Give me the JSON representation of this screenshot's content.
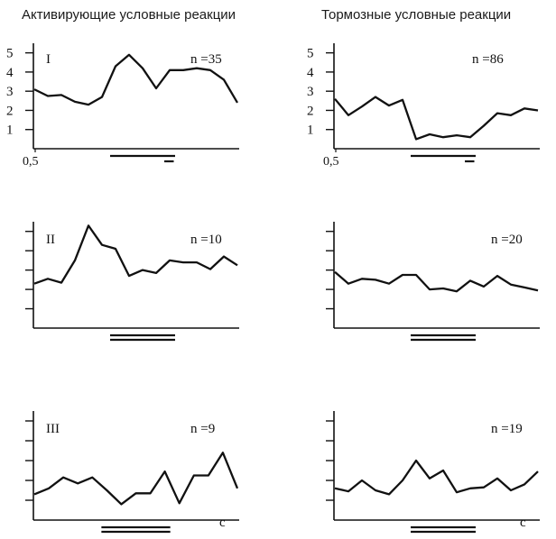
{
  "columns": {
    "left": "Активирующие условные реакции",
    "right": "Тормозные условные реакции"
  },
  "x_unit": "с",
  "chart_data": [
    {
      "type": "line",
      "column": "left",
      "row": 1,
      "label": "I",
      "n": "n =35",
      "ylim": [
        0,
        5.5
      ],
      "yticks": [
        "1",
        "2",
        "3",
        "4",
        "5"
      ],
      "xtick": "0,5",
      "values": [
        3.1,
        2.75,
        2.8,
        2.45,
        2.3,
        2.7,
        4.3,
        4.9,
        4.2,
        3.15,
        4.1,
        4.1,
        4.2,
        4.1,
        3.6,
        2.4
      ],
      "stimulus_long": [
        6,
        10
      ],
      "stimulus_short": [
        9.6,
        10.3
      ]
    },
    {
      "type": "line",
      "column": "right",
      "row": 1,
      "label": "",
      "n": "n =86",
      "ylim": [
        0,
        5.5
      ],
      "yticks": [
        "1",
        "2",
        "3",
        "4",
        "5"
      ],
      "xtick": "0,5",
      "values": [
        2.6,
        1.75,
        2.2,
        2.7,
        2.25,
        2.55,
        0.5,
        0.75,
        0.6,
        0.7,
        0.6,
        1.2,
        1.85,
        1.75,
        2.1,
        2.0
      ],
      "stimulus_long": [
        6,
        10
      ],
      "stimulus_short": [
        9.6,
        10.3
      ]
    },
    {
      "type": "line",
      "column": "left",
      "row": 2,
      "label": "II",
      "n": "n =10",
      "ylim": [
        0,
        5.5
      ],
      "yticks": [],
      "values": [
        2.3,
        2.55,
        2.35,
        3.5,
        5.3,
        4.3,
        4.1,
        2.7,
        3.0,
        2.85,
        3.5,
        3.4,
        3.4,
        3.05,
        3.7,
        3.25
      ],
      "stimulus_long": [
        6,
        10
      ],
      "stimulus_double": true
    },
    {
      "type": "line",
      "column": "right",
      "row": 2,
      "label": "",
      "n": "n =20",
      "ylim": [
        0,
        5.5
      ],
      "yticks": [],
      "values": [
        2.9,
        2.3,
        2.55,
        2.5,
        2.3,
        2.75,
        2.75,
        2.0,
        2.05,
        1.9,
        2.45,
        2.15,
        2.7,
        2.25,
        2.1,
        1.95
      ],
      "stimulus_long": [
        6,
        10
      ],
      "stimulus_double": true
    },
    {
      "type": "line",
      "column": "left",
      "row": 3,
      "label": "III",
      "n": "n =9",
      "ylim": [
        0,
        5.5
      ],
      "yticks": [],
      "values": [
        1.3,
        1.6,
        2.15,
        1.85,
        2.15,
        1.5,
        0.8,
        1.35,
        1.35,
        2.45,
        0.85,
        2.25,
        2.25,
        3.4,
        1.6
      ],
      "stimulus_long": [
        5,
        9
      ],
      "stimulus_double": true,
      "xunit": true
    },
    {
      "type": "line",
      "column": "right",
      "row": 3,
      "label": "",
      "n": "n =19",
      "ylim": [
        0,
        5.5
      ],
      "yticks": [],
      "values": [
        1.6,
        1.45,
        2.0,
        1.5,
        1.3,
        2.0,
        3.0,
        2.1,
        2.5,
        1.4,
        1.6,
        1.65,
        2.1,
        1.5,
        1.8,
        2.45
      ],
      "stimulus_long": [
        6,
        10
      ],
      "stimulus_double": true,
      "xunit": true
    }
  ]
}
